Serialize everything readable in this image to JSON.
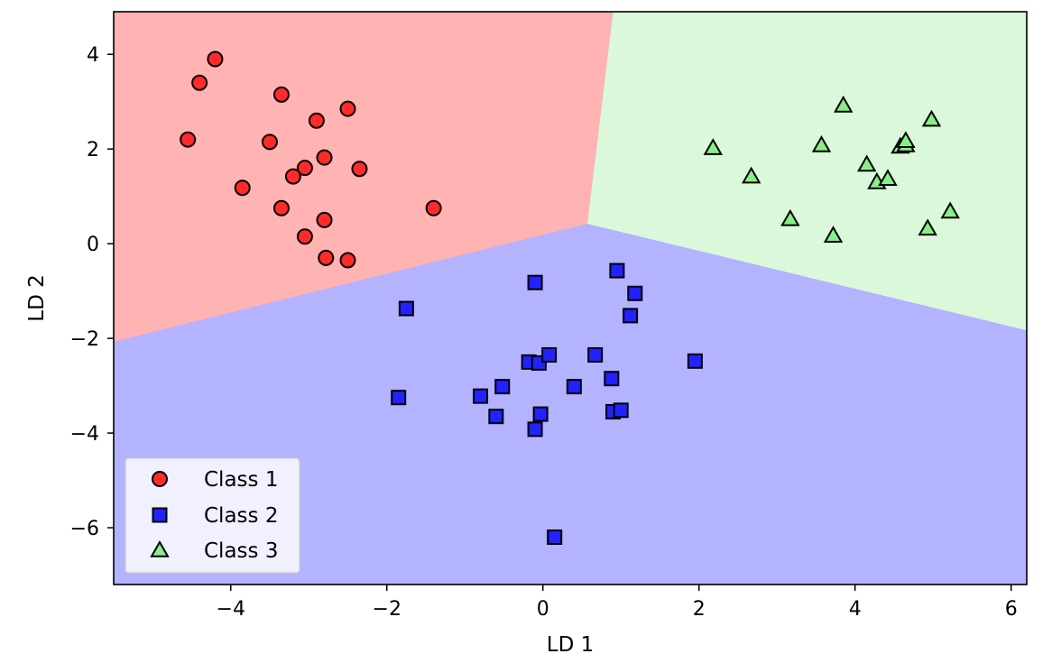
{
  "chart_data": {
    "type": "scatter",
    "title": "",
    "xlabel": "LD 1",
    "ylabel": "LD 2",
    "xlim": [
      -5.5,
      6.2
    ],
    "ylim": [
      -7.2,
      4.9
    ],
    "xticks": [
      -4,
      -2,
      0,
      2,
      4,
      6
    ],
    "yticks": [
      -6,
      -4,
      -2,
      0,
      2,
      4
    ],
    "xtick_labels": [
      "−4",
      "−2",
      "0",
      "2",
      "4",
      "6"
    ],
    "ytick_labels": [
      "−6",
      "−4",
      "−2",
      "0",
      "2",
      "4"
    ],
    "grid": false,
    "legend_position": "lower-left",
    "decision_regions": [
      {
        "class": "Class 1",
        "color": "#ffb3b3"
      },
      {
        "class": "Class 2",
        "color": "#b3b3ff"
      },
      {
        "class": "Class 3",
        "color": "#dbf8db"
      }
    ],
    "series": [
      {
        "name": "Class 1",
        "marker": "circle",
        "color": "#ff2a2a",
        "points": [
          [
            -4.55,
            2.2
          ],
          [
            -4.4,
            3.4
          ],
          [
            -4.2,
            3.9
          ],
          [
            -3.85,
            1.18
          ],
          [
            -3.5,
            2.15
          ],
          [
            -3.35,
            3.15
          ],
          [
            -3.35,
            0.75
          ],
          [
            -3.2,
            1.42
          ],
          [
            -3.05,
            1.6
          ],
          [
            -3.05,
            0.15
          ],
          [
            -2.9,
            2.6
          ],
          [
            -2.8,
            1.82
          ],
          [
            -2.8,
            0.5
          ],
          [
            -2.78,
            -0.3
          ],
          [
            -2.5,
            2.85
          ],
          [
            -2.5,
            -0.35
          ],
          [
            -2.35,
            1.58
          ],
          [
            -1.4,
            0.75
          ]
        ]
      },
      {
        "name": "Class 2",
        "marker": "square",
        "color": "#2222ff",
        "points": [
          [
            -1.85,
            -3.25
          ],
          [
            -1.75,
            -1.37
          ],
          [
            -0.8,
            -3.22
          ],
          [
            -0.6,
            -3.65
          ],
          [
            -0.52,
            -3.02
          ],
          [
            -0.18,
            -2.5
          ],
          [
            -0.1,
            -0.82
          ],
          [
            -0.1,
            -3.92
          ],
          [
            -0.05,
            -2.52
          ],
          [
            -0.03,
            -3.6
          ],
          [
            0.08,
            -2.35
          ],
          [
            0.15,
            -6.2
          ],
          [
            0.4,
            -3.02
          ],
          [
            0.67,
            -2.35
          ],
          [
            0.88,
            -2.85
          ],
          [
            0.9,
            -3.55
          ],
          [
            1.0,
            -3.52
          ],
          [
            0.95,
            -0.57
          ],
          [
            1.12,
            -1.52
          ],
          [
            1.18,
            -1.05
          ],
          [
            1.95,
            -2.48
          ]
        ]
      },
      {
        "name": "Class 3",
        "marker": "triangle",
        "color": "#88ee88",
        "points": [
          [
            2.18,
            2.02
          ],
          [
            2.67,
            1.42
          ],
          [
            3.17,
            0.52
          ],
          [
            3.57,
            2.08
          ],
          [
            3.72,
            0.17
          ],
          [
            3.85,
            2.92
          ],
          [
            4.15,
            1.67
          ],
          [
            4.28,
            1.3
          ],
          [
            4.42,
            1.37
          ],
          [
            4.58,
            2.05
          ],
          [
            4.65,
            2.08
          ],
          [
            4.65,
            2.17
          ],
          [
            4.93,
            0.32
          ],
          [
            4.98,
            2.62
          ],
          [
            5.22,
            0.68
          ]
        ]
      }
    ],
    "legend": [
      {
        "label": "Class 1",
        "marker": "circle"
      },
      {
        "label": "Class 2",
        "marker": "square"
      },
      {
        "label": "Class 3",
        "marker": "triangle"
      }
    ]
  }
}
